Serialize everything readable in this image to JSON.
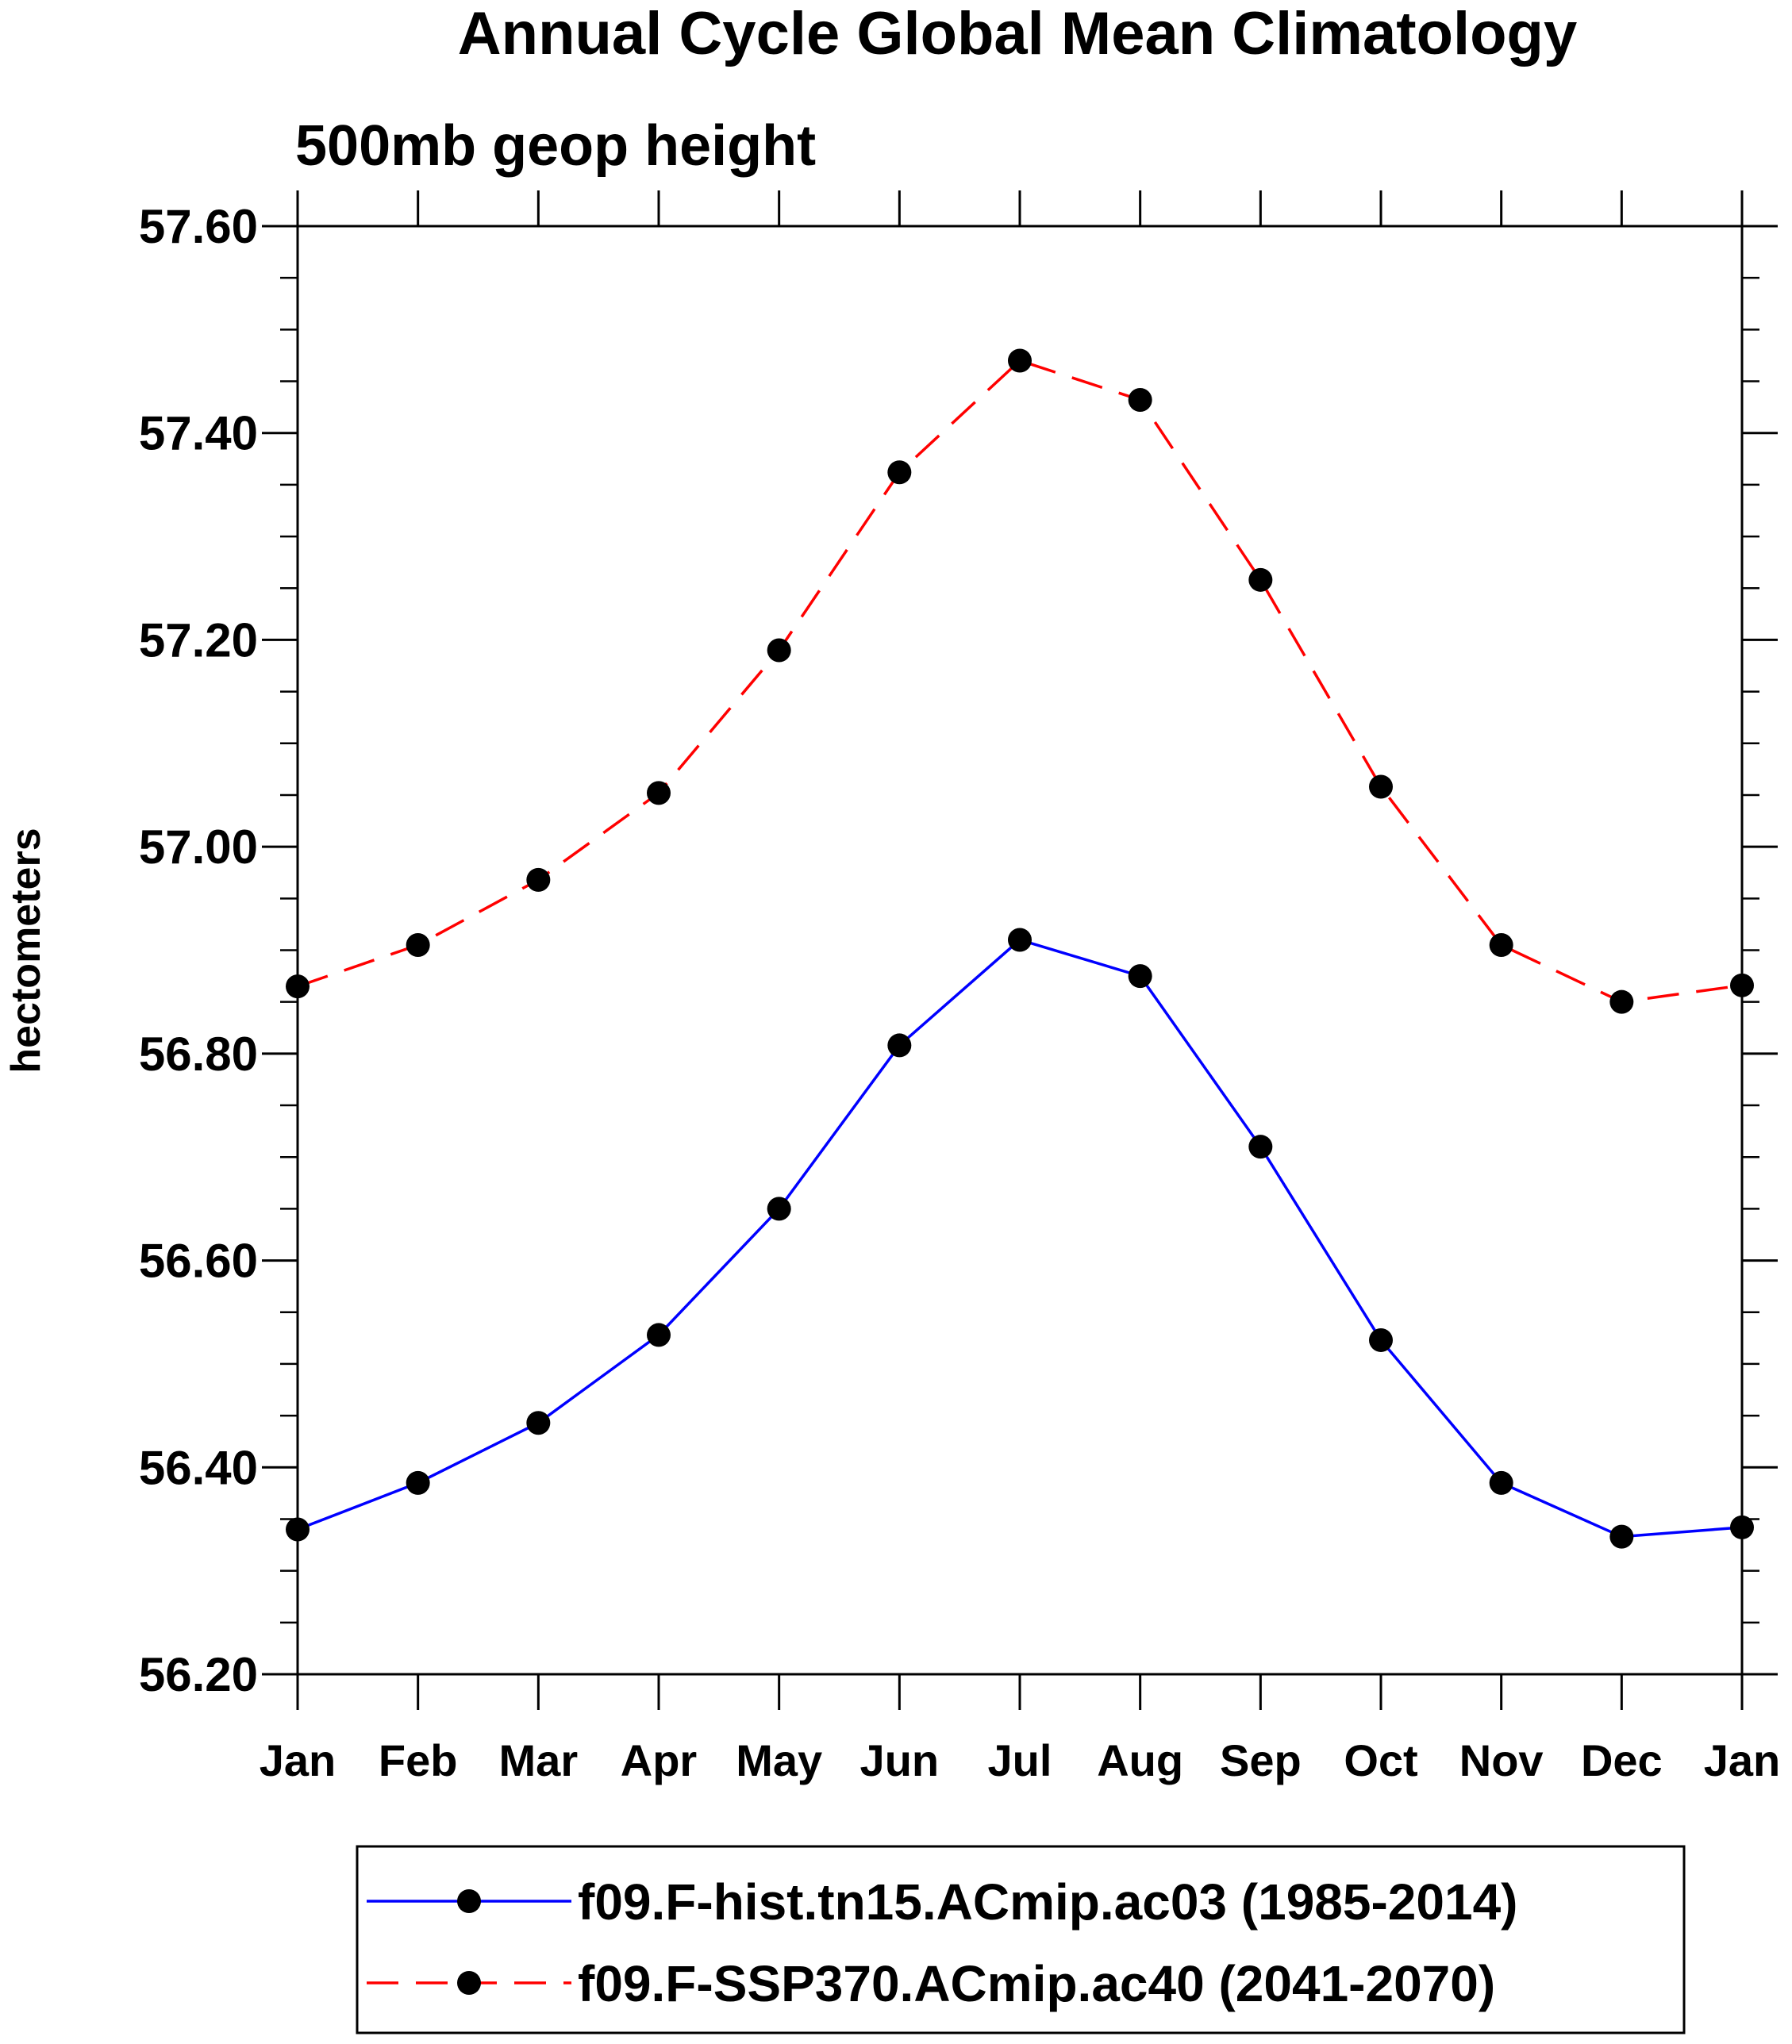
{
  "chart_data": {
    "type": "line",
    "title": "Annual Cycle Global Mean Climatology",
    "subtitle": "500mb geop height",
    "xlabel": "",
    "ylabel": "hectometers",
    "categories": [
      "Jan",
      "Feb",
      "Mar",
      "Apr",
      "May",
      "Jun",
      "Jul",
      "Aug",
      "Sep",
      "Oct",
      "Nov",
      "Dec",
      "Jan"
    ],
    "ylim": [
      56.2,
      57.6
    ],
    "yticks": [
      "56.20",
      "56.40",
      "56.60",
      "56.80",
      "57.00",
      "57.20",
      "57.40",
      "57.60"
    ],
    "y_minor_step": 0.05,
    "grid": false,
    "legend_position": "bottom",
    "series": [
      {
        "name": "f09.F-hist.tn15.ACmip.ac03 (1985-2014)",
        "color": "#0000ff",
        "dash": "solid",
        "marker": "filled-circle",
        "values": [
          56.34,
          56.385,
          56.443,
          56.528,
          56.65,
          56.808,
          56.91,
          56.875,
          56.71,
          56.523,
          56.385,
          56.333,
          56.342
        ]
      },
      {
        "name": "f09.F-SSP370.ACmip.ac40 (2041-2070)",
        "color": "#ff0000",
        "dash": "dashed",
        "marker": "filled-circle",
        "values": [
          56.865,
          56.905,
          56.968,
          57.052,
          57.19,
          57.362,
          57.47,
          57.432,
          57.258,
          57.058,
          56.905,
          56.85,
          56.866
        ]
      }
    ]
  }
}
